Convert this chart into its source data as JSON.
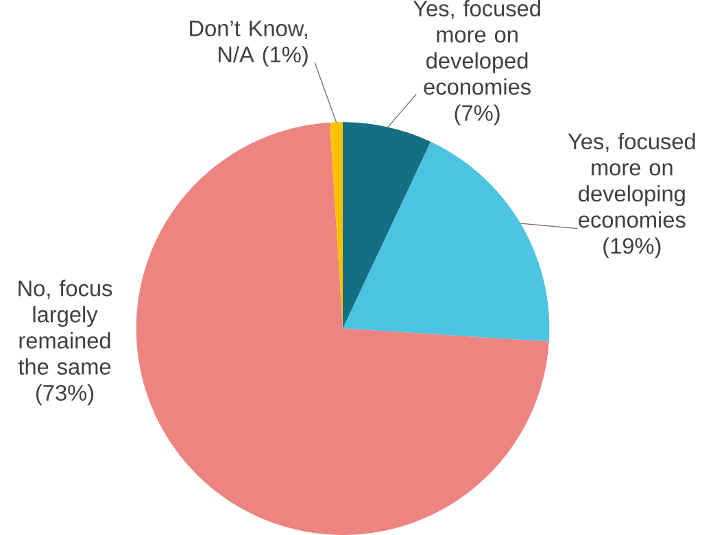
{
  "chart_data": {
    "type": "pie",
    "categories": [
      "Yes, focused more on developed economies (7%)",
      "Yes, focused more on developing economies (19%)",
      "No, focus largely remained the same (73%)",
      "Don’t Know, N/A (1%)"
    ],
    "values": [
      7,
      19,
      73,
      1
    ],
    "colors": [
      "#156e82",
      "#4dc3e2",
      "#ec8480",
      "#ffc000"
    ]
  }
}
